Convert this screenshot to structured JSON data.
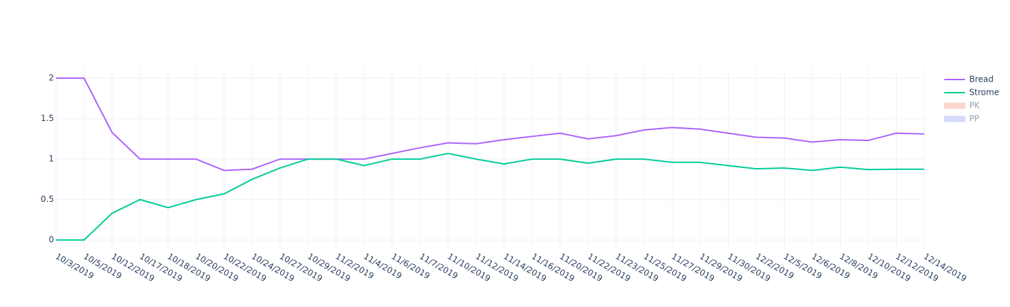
{
  "chart_data": {
    "type": "line",
    "categories": [
      "10/3/2019",
      "10/5/2019",
      "10/12/2019",
      "10/17/2019",
      "10/18/2019",
      "10/20/2019",
      "10/22/2019",
      "10/24/2019",
      "10/27/2019",
      "10/29/2019",
      "11/2/2019",
      "11/4/2019",
      "11/6/2019",
      "11/7/2019",
      "11/10/2019",
      "11/12/2019",
      "11/14/2019",
      "11/16/2019",
      "11/20/2019",
      "11/22/2019",
      "11/23/2019",
      "11/25/2019",
      "11/27/2019",
      "11/29/2019",
      "11/30/2019",
      "12/2/2019",
      "12/5/2019",
      "12/6/2019",
      "12/8/2019",
      "12/10/2019",
      "12/12/2019",
      "12/14/2019"
    ],
    "series": [
      {
        "name": "Bread",
        "color": "#ab63fa",
        "values": [
          2,
          2,
          1.33,
          1,
          1,
          1,
          0.86,
          0.875,
          1,
          1,
          1,
          1,
          1.07,
          1.14,
          1.2,
          1.19,
          1.24,
          1.28,
          1.32,
          1.25,
          1.29,
          1.36,
          1.39,
          1.37,
          1.32,
          1.27,
          1.26,
          1.21,
          1.24,
          1.23,
          1.32,
          1.31
        ]
      },
      {
        "name": "Strome",
        "color": "#00cc96",
        "values": [
          0,
          0,
          0.33,
          0.5,
          0.4,
          0.5,
          0.57,
          0.75,
          0.89,
          1,
          1,
          0.92,
          1,
          1,
          1.07,
          1,
          0.94,
          1,
          1,
          0.95,
          1,
          1,
          0.96,
          0.96,
          0.92,
          0.88,
          0.89,
          0.86,
          0.9,
          0.87,
          0.875,
          0.875
        ]
      },
      {
        "name": "PK",
        "color": "#EF553B",
        "visible": "legendonly"
      },
      {
        "name": "PP",
        "color": "#636efa",
        "visible": "legendonly"
      }
    ],
    "ylim": [
      -0.11,
      2.12
    ],
    "yticks": [
      0,
      0.5,
      1,
      1.5,
      2
    ],
    "grid": true,
    "legend": "right"
  }
}
